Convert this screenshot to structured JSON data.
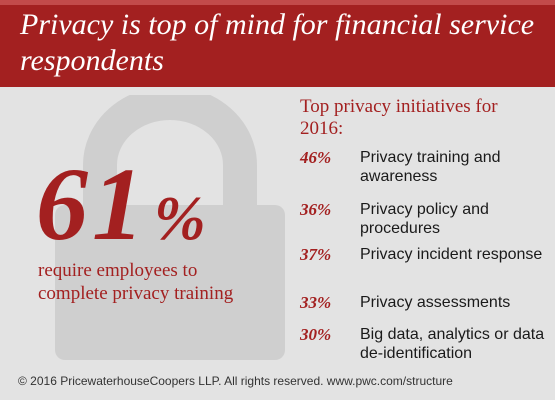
{
  "header": {
    "title": "Privacy is top of mind for financial service respondents"
  },
  "stat": {
    "value": "61",
    "unit": "%",
    "description": "require employees to complete privacy training"
  },
  "initiatives": {
    "heading": "Top privacy initiatives for 2016:",
    "items": [
      {
        "percent": "46%",
        "label": "Privacy training and awareness"
      },
      {
        "percent": "36%",
        "label": "Privacy policy and procedures"
      },
      {
        "percent": "37%",
        "label": "Privacy incident response"
      },
      {
        "percent": "33%",
        "label": "Privacy assessments"
      },
      {
        "percent": "30%",
        "label": "Big data, analytics or data de-identification"
      }
    ]
  },
  "footer": {
    "text": "© 2016 PricewaterhouseCoopers LLP.  All rights reserved. www.pwc.com/structure"
  },
  "colors": {
    "accent": "#a32020",
    "background": "#e3e3e3",
    "lock": "#cfcfcf"
  },
  "icons": {
    "background": "padlock-icon"
  }
}
